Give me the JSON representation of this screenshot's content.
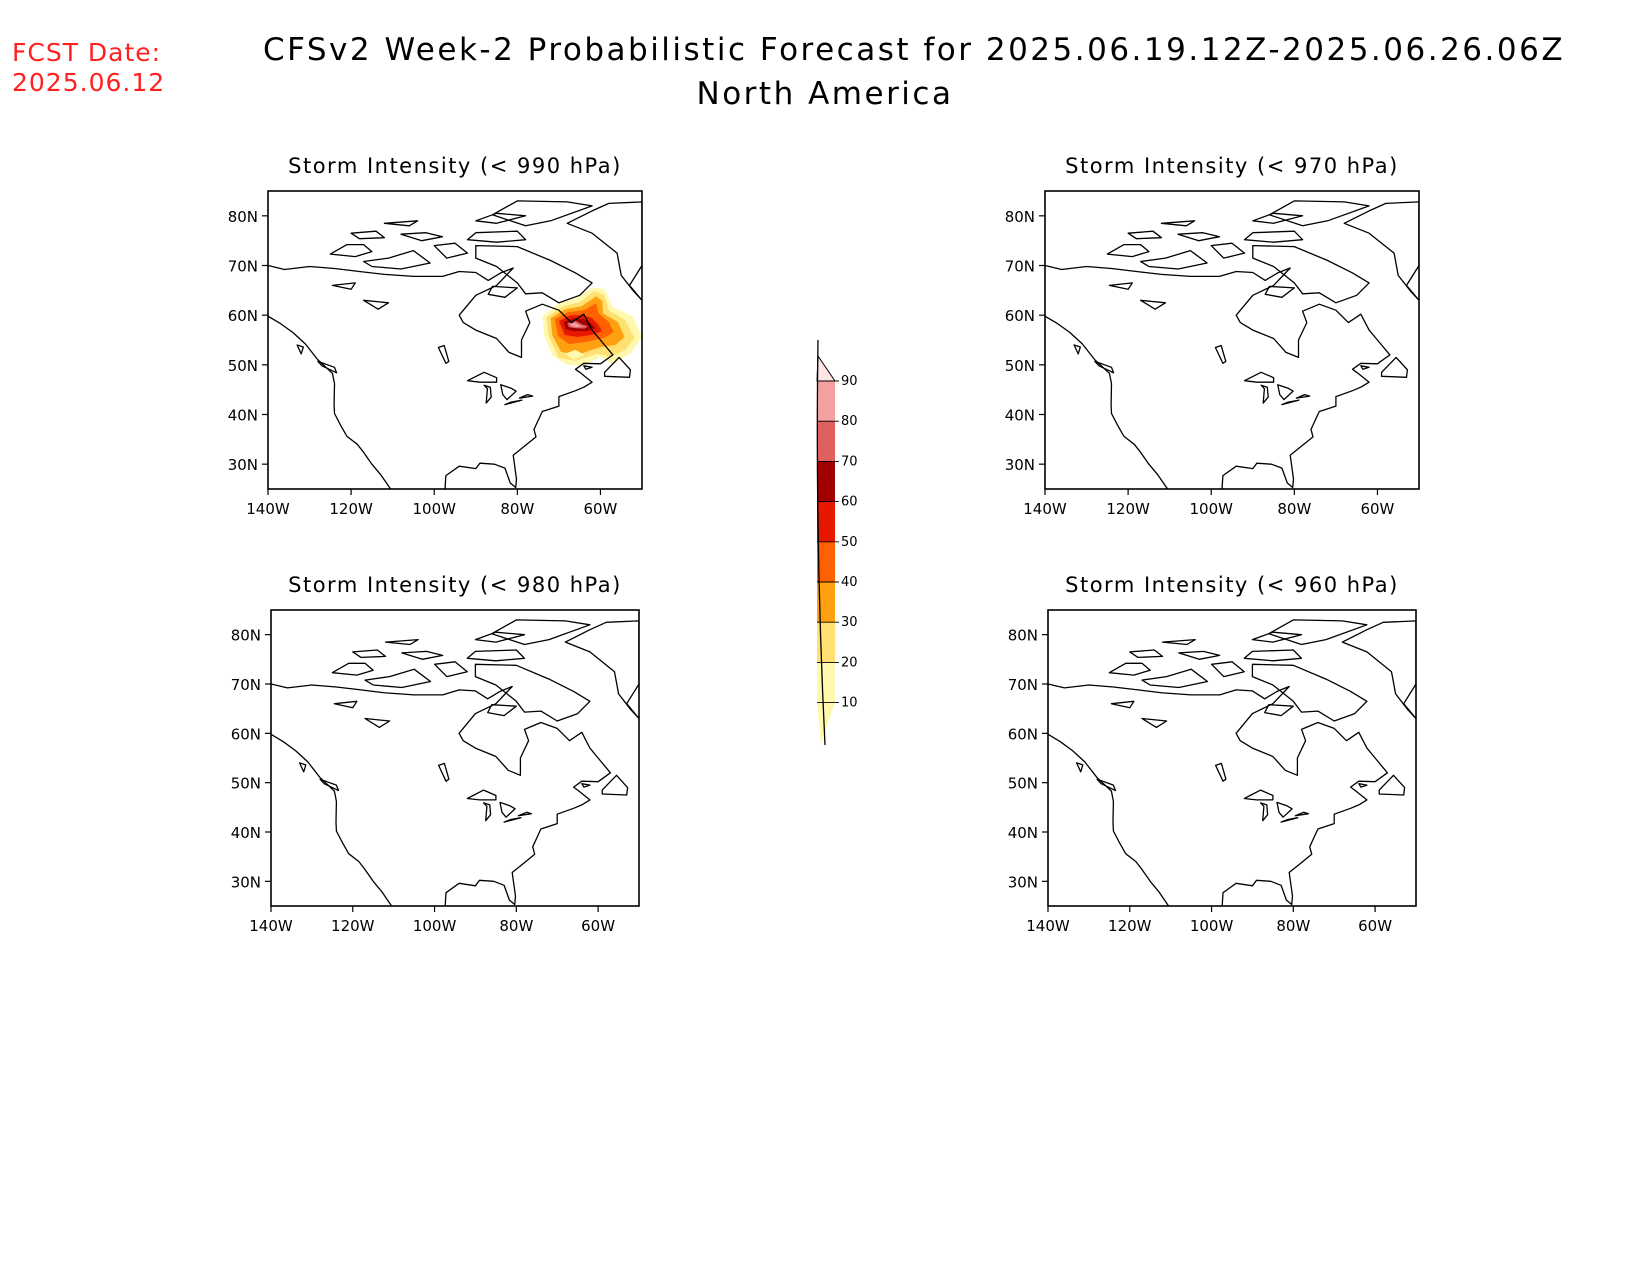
{
  "fcst": {
    "line1": "FCST Date:",
    "line2": "2025.06.12"
  },
  "title": {
    "line1": "CFSv2 Week-2 Probabilistic Forecast for 2025.06.19.12Z-2025.06.26.06Z",
    "line2": "North America"
  },
  "panels": [
    {
      "title": "Storm Intensity (< 990 hPa)",
      "has_signal": true
    },
    {
      "title": "Storm Intensity (< 970 hPa)",
      "has_signal": false
    },
    {
      "title": "Storm Intensity (< 980 hPa)",
      "has_signal": false
    },
    {
      "title": "Storm Intensity (< 960 hPa)",
      "has_signal": false
    }
  ],
  "lat_ticks": [
    "80N",
    "70N",
    "60N",
    "50N",
    "40N",
    "30N"
  ],
  "lon_ticks": [
    "140W",
    "120W",
    "100W",
    "80W",
    "60W"
  ],
  "map_extent": {
    "lon": [
      -140,
      -50
    ],
    "lat": [
      25,
      85
    ]
  },
  "colorbar": {
    "levels": [
      "10",
      "20",
      "30",
      "40",
      "50",
      "60",
      "70",
      "80",
      "90"
    ],
    "colors": [
      "#fff9b0",
      "#ffe070",
      "#ffa010",
      "#ff6000",
      "#e81800",
      "#a00000",
      "#e06060",
      "#f4a0a0",
      "#ffe4e4"
    ]
  },
  "signal_region": {
    "description_center_lat": 57,
    "description_center_lon": -65,
    "max_probability_pct": 80
  }
}
